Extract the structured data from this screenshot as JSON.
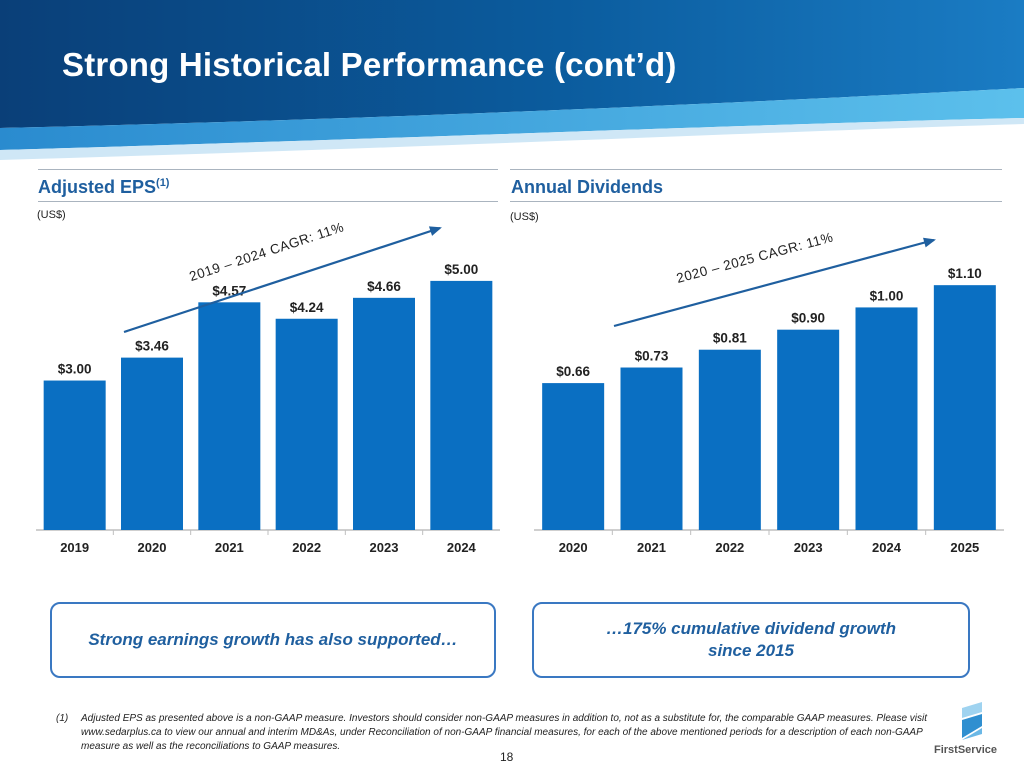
{
  "title": "Strong Historical Performance (cont’d)",
  "left_panel": {
    "title": "Adjusted EPS",
    "title_sup": "(1)",
    "unit": "(US$)",
    "cagr_label": "2019 – 2024 CAGR: 11%"
  },
  "right_panel": {
    "title": "Annual Dividends",
    "unit": "(US$)",
    "cagr_label": "2020 – 2025 CAGR: 11%"
  },
  "chart_data": [
    {
      "type": "bar",
      "title": "Adjusted EPS(1)",
      "ylabel": "(US$)",
      "categories": [
        "2019",
        "2020",
        "2021",
        "2022",
        "2023",
        "2024"
      ],
      "values": [
        3.0,
        3.46,
        4.57,
        4.24,
        4.66,
        5.0
      ],
      "labels": [
        "$3.00",
        "$3.46",
        "$4.57",
        "$4.24",
        "$4.66",
        "$5.00"
      ],
      "ylim": [
        0,
        5.6
      ],
      "annotation": "2019 – 2024 CAGR: 11%"
    },
    {
      "type": "bar",
      "title": "Annual Dividends",
      "ylabel": "(US$)",
      "categories": [
        "2020",
        "2021",
        "2022",
        "2023",
        "2024",
        "2025"
      ],
      "values": [
        0.66,
        0.73,
        0.81,
        0.9,
        1.0,
        1.1
      ],
      "labels": [
        "$0.66",
        "$0.73",
        "$0.81",
        "$0.90",
        "$1.00",
        "$1.10"
      ],
      "ylim": [
        0,
        1.24
      ],
      "annotation": "2020 – 2025 CAGR: 11%"
    }
  ],
  "callouts": {
    "left": "Strong earnings growth has also supported…",
    "right_line1": "…175% cumulative dividend growth",
    "right_line2": "since 2015"
  },
  "footnote": {
    "number": "(1)",
    "text": "Adjusted EPS as presented above is a non-GAAP measure. Investors should consider non-GAAP measures in addition to, not as a substitute for, the comparable GAAP measures. Please visit www.sedarplus.ca to view our annual and interim MD&As, under Reconciliation of non-GAAP financial measures, for each of the above mentioned periods for a description of each non-GAAP measure as well as the reconciliations to GAAP measures."
  },
  "page_number": "18",
  "logo_text": "FirstService",
  "colors": {
    "bar": "#0a6fc2",
    "title_blue": "#1f5f9f",
    "header_dark": "#0b4f8f",
    "header_light": "#3fa6dd",
    "callout_border": "#3a78c2"
  }
}
